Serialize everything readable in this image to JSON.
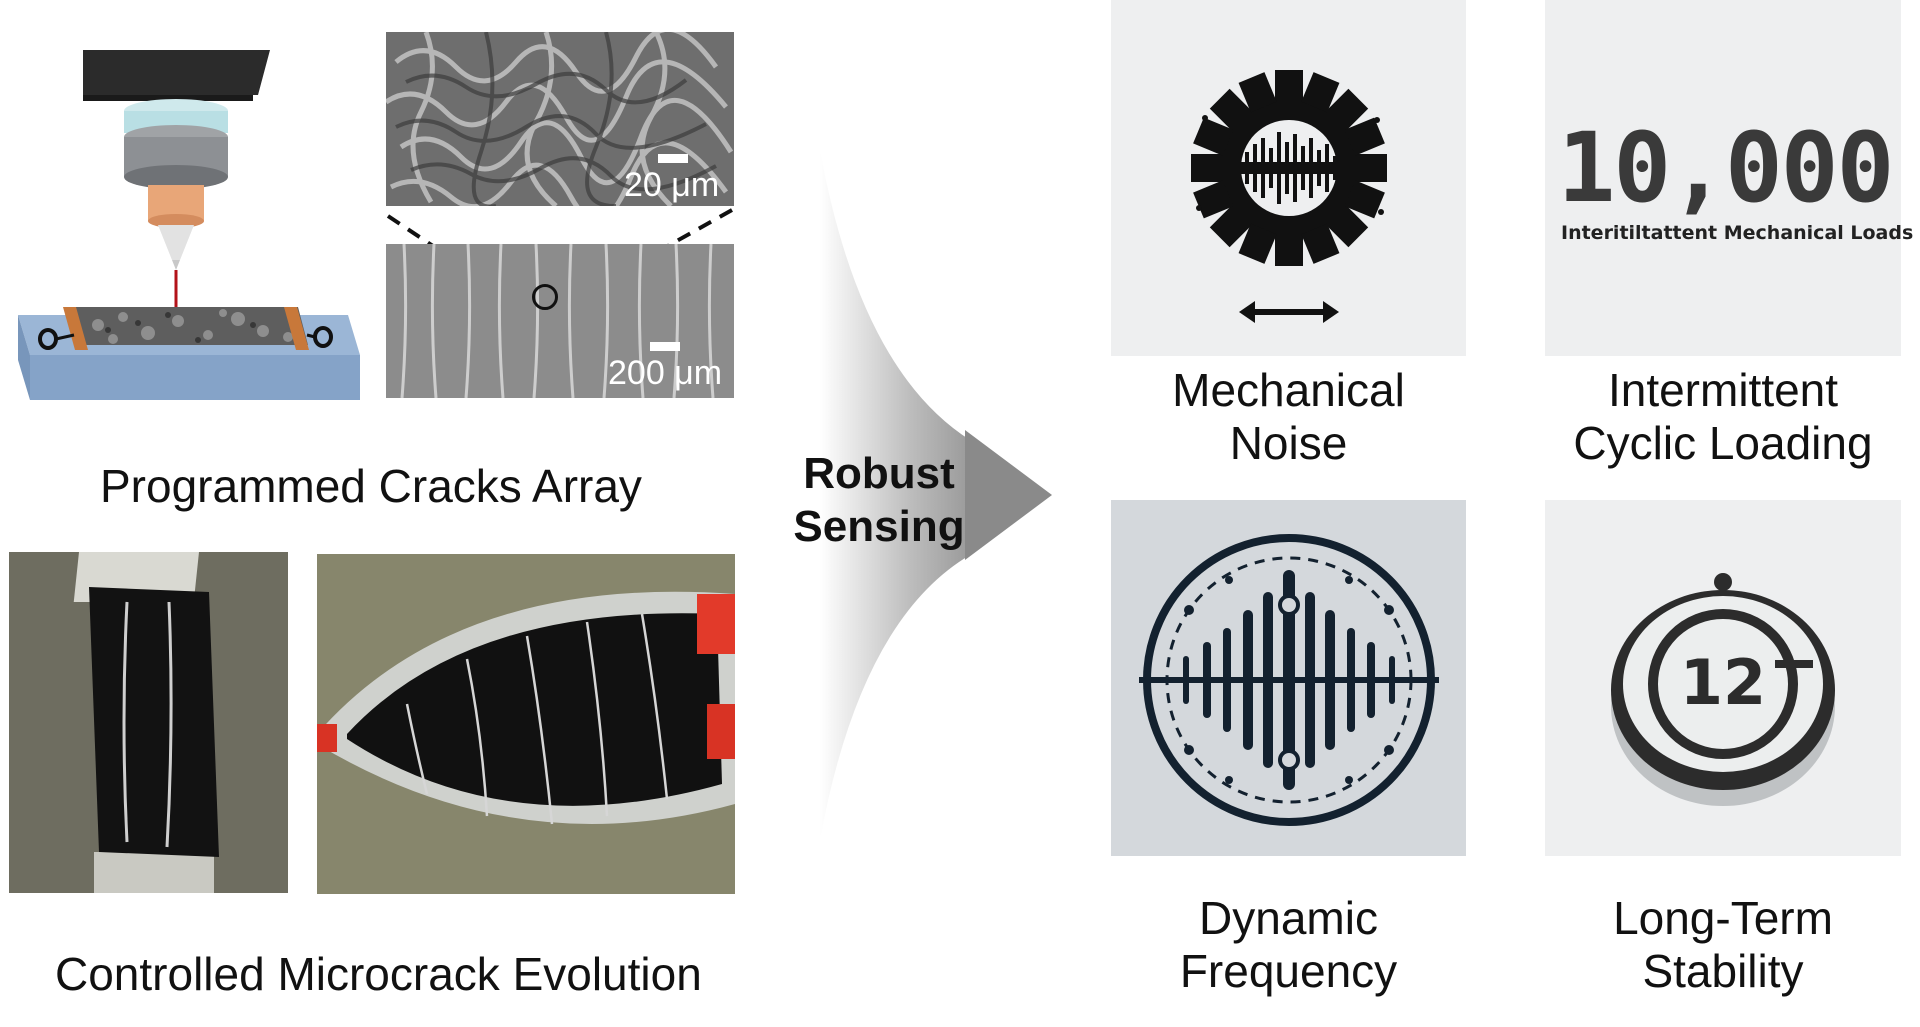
{
  "left_top": {
    "sem_top_scale": "20 μm",
    "sem_bottom_scale": "200 μm",
    "caption": "Programmed Cracks Array"
  },
  "left_bottom": {
    "caption": "Controlled Microcrack Evolution"
  },
  "center": {
    "label_line1": "Robust",
    "label_line2": "Sensing"
  },
  "tiles": {
    "mechanical_noise": {
      "line1": "Mechanical",
      "line2": "Noise"
    },
    "intermittent": {
      "line1": "Intermittent",
      "line2": "Cyclic Loading",
      "counter": "10,000",
      "counter_sub": "Interitiltattent Mechanical Loads"
    },
    "dynamic_frequency": {
      "line1": "Dynamic",
      "line2": "Frequency"
    },
    "long_term": {
      "line1": "Long-Term",
      "line2": "Stability",
      "badge": "12"
    }
  }
}
